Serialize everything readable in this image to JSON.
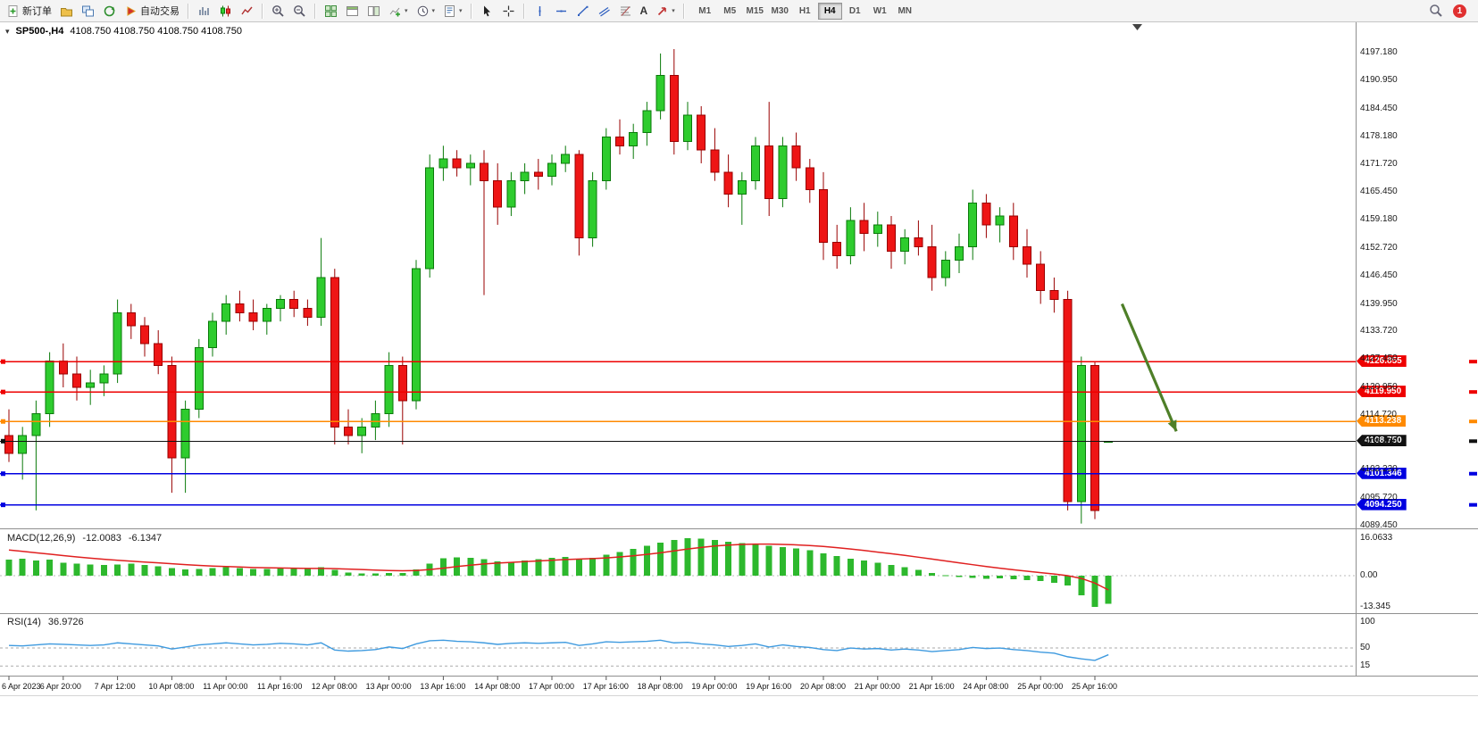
{
  "window": {
    "notification_count": "1"
  },
  "toolbar": {
    "new_order_label": "新订单",
    "auto_trading_label": "自动交易",
    "text_tool_label": "A",
    "timeframes": [
      "M1",
      "M5",
      "M15",
      "M30",
      "H1",
      "H4",
      "D1",
      "W1",
      "MN"
    ],
    "active_timeframe": "H4"
  },
  "chart": {
    "symbol_title": "SP500-,H4",
    "quote_line": "4108.750 4108.750 4108.750 4108.750"
  },
  "chart_data": {
    "type": "candlestick",
    "symbol": "SP500-",
    "timeframe": "H4",
    "price_axis": {
      "min": 4088.9,
      "max": 4204.3,
      "labels": [
        "4197.180",
        "4190.950",
        "4184.450",
        "4178.180",
        "4171.720",
        "4165.450",
        "4159.180",
        "4152.720",
        "4146.450",
        "4139.950",
        "4133.720",
        "4127.450",
        "4120.950",
        "4114.720",
        "4108.450",
        "4102.220",
        "4095.720",
        "4089.450"
      ]
    },
    "time_labels": [
      "6 Apr 2023",
      "6 Apr 20:00",
      "7 Apr 12:00",
      "10 Apr 08:00",
      "11 Apr 00:00",
      "11 Apr 16:00",
      "12 Apr 08:00",
      "13 Apr 00:00",
      "13 Apr 16:00",
      "14 Apr 08:00",
      "17 Apr 00:00",
      "17 Apr 16:00",
      "18 Apr 08:00",
      "19 Apr 00:00",
      "19 Apr 16:00",
      "20 Apr 08:00",
      "21 Apr 00:00",
      "21 Apr 16:00",
      "24 Apr 08:00",
      "25 Apr 00:00",
      "25 Apr 16:00"
    ],
    "time_label_step_bars": 4,
    "candles": [
      [
        4110,
        4116,
        4104,
        4106
      ],
      [
        4106,
        4112,
        4100,
        4110
      ],
      [
        4110,
        4118,
        4093,
        4115
      ],
      [
        4115,
        4129,
        4112,
        4127
      ],
      [
        4127,
        4131,
        4121,
        4124
      ],
      [
        4124,
        4128,
        4118,
        4121
      ],
      [
        4121,
        4125,
        4117,
        4122
      ],
      [
        4122,
        4126,
        4119,
        4124
      ],
      [
        4124,
        4141,
        4122,
        4138
      ],
      [
        4138,
        4140,
        4132,
        4135
      ],
      [
        4135,
        4137,
        4128,
        4131
      ],
      [
        4131,
        4134,
        4124,
        4126
      ],
      [
        4126,
        4128,
        4097,
        4105
      ],
      [
        4105,
        4118,
        4097,
        4116
      ],
      [
        4116,
        4132,
        4114,
        4130
      ],
      [
        4130,
        4138,
        4128,
        4136
      ],
      [
        4136,
        4142,
        4133,
        4140
      ],
      [
        4140,
        4143,
        4136,
        4138
      ],
      [
        4138,
        4141,
        4134,
        4136
      ],
      [
        4136,
        4140,
        4133,
        4139
      ],
      [
        4139,
        4142,
        4136,
        4141
      ],
      [
        4141,
        4143,
        4137,
        4139
      ],
      [
        4139,
        4141,
        4135,
        4137
      ],
      [
        4137,
        4155,
        4135,
        4146
      ],
      [
        4146,
        4148,
        4108,
        4112
      ],
      [
        4112,
        4116,
        4108,
        4110
      ],
      [
        4110,
        4114,
        4106,
        4112
      ],
      [
        4112,
        4118,
        4109,
        4115
      ],
      [
        4115,
        4129,
        4112,
        4126
      ],
      [
        4126,
        4128,
        4108,
        4118
      ],
      [
        4118,
        4150,
        4116,
        4148
      ],
      [
        4148,
        4174,
        4146,
        4171
      ],
      [
        4171,
        4176,
        4168,
        4173
      ],
      [
        4173,
        4175,
        4169,
        4171
      ],
      [
        4171,
        4174,
        4167,
        4172
      ],
      [
        4172,
        4175,
        4142,
        4168
      ],
      [
        4168,
        4172,
        4158,
        4162
      ],
      [
        4162,
        4170,
        4160,
        4168
      ],
      [
        4168,
        4172,
        4165,
        4170
      ],
      [
        4170,
        4173,
        4166,
        4169
      ],
      [
        4169,
        4174,
        4167,
        4172
      ],
      [
        4172,
        4176,
        4170,
        4174
      ],
      [
        4174,
        4175,
        4151,
        4155
      ],
      [
        4155,
        4170,
        4153,
        4168
      ],
      [
        4168,
        4180,
        4166,
        4178
      ],
      [
        4178,
        4182,
        4174,
        4176
      ],
      [
        4176,
        4181,
        4173,
        4179
      ],
      [
        4179,
        4186,
        4176,
        4184
      ],
      [
        4184,
        4197,
        4182,
        4192
      ],
      [
        4192,
        4198,
        4174,
        4177
      ],
      [
        4177,
        4186,
        4175,
        4183
      ],
      [
        4183,
        4185,
        4172,
        4175
      ],
      [
        4175,
        4180,
        4168,
        4170
      ],
      [
        4170,
        4174,
        4162,
        4165
      ],
      [
        4165,
        4170,
        4158,
        4168
      ],
      [
        4168,
        4178,
        4166,
        4176
      ],
      [
        4176,
        4186,
        4160,
        4164
      ],
      [
        4164,
        4178,
        4162,
        4176
      ],
      [
        4176,
        4179,
        4168,
        4171
      ],
      [
        4171,
        4173,
        4163,
        4166
      ],
      [
        4166,
        4170,
        4150,
        4154
      ],
      [
        4154,
        4158,
        4148,
        4151
      ],
      [
        4151,
        4162,
        4149,
        4159
      ],
      [
        4159,
        4163,
        4152,
        4156
      ],
      [
        4156,
        4161,
        4153,
        4158
      ],
      [
        4158,
        4160,
        4148,
        4152
      ],
      [
        4152,
        4157,
        4149,
        4155
      ],
      [
        4155,
        4159,
        4151,
        4153
      ],
      [
        4153,
        4158,
        4143,
        4146
      ],
      [
        4146,
        4152,
        4144,
        4150
      ],
      [
        4150,
        4156,
        4147,
        4153
      ],
      [
        4153,
        4166,
        4150,
        4163
      ],
      [
        4163,
        4165,
        4155,
        4158
      ],
      [
        4158,
        4162,
        4154,
        4160
      ],
      [
        4160,
        4163,
        4150,
        4153
      ],
      [
        4153,
        4157,
        4146,
        4149
      ],
      [
        4149,
        4152,
        4140,
        4143
      ],
      [
        4143,
        4146,
        4138,
        4141
      ],
      [
        4141,
        4143,
        4093,
        4095
      ],
      [
        4095,
        4128,
        4090,
        4126
      ],
      [
        4126,
        4127,
        4091,
        4093
      ],
      [
        4108.75,
        4108.75,
        4108.75,
        4108.75
      ]
    ],
    "hlines": [
      {
        "price": 4126.855,
        "color": "#ee0000",
        "label": "4126.855"
      },
      {
        "price": 4119.95,
        "color": "#ee0000",
        "label": "4119.950"
      },
      {
        "price": 4113.238,
        "color": "#ff8a00",
        "label": "4113.238"
      },
      {
        "price": 4108.75,
        "color": "#111111",
        "label": "4108.750",
        "current": true
      },
      {
        "price": 4101.346,
        "color": "#0000e0",
        "label": "4101.346"
      },
      {
        "price": 4094.25,
        "color": "#0000e0",
        "label": "4094.250"
      }
    ],
    "arrow": {
      "from_bar": 82,
      "from_price": 4140,
      "to_bar": 86,
      "to_price": 4111,
      "color": "#4e7f28"
    },
    "macd": {
      "label": "MACD(12,26,9)",
      "value": "-12.0083",
      "signal_value": "-6.1347",
      "scale_labels": [
        "16.0633",
        "0.00",
        "-13.345"
      ],
      "histogram": [
        6.8,
        7.2,
        6.4,
        6.8,
        5.6,
        5.2,
        4.8,
        4.6,
        4.8,
        5.2,
        4.6,
        4.0,
        3.2,
        2.6,
        2.8,
        3.2,
        3.6,
        3.2,
        2.8,
        2.8,
        3.2,
        3.2,
        2.8,
        3.6,
        2.4,
        1.4,
        1.0,
        0.9,
        1.2,
        1.2,
        2.6,
        5.2,
        7.4,
        7.8,
        7.6,
        7.0,
        6.2,
        6.0,
        6.4,
        7.0,
        7.6,
        8.0,
        7.2,
        7.6,
        9.0,
        10.2,
        11.4,
        12.8,
        14.2,
        15.2,
        16.06,
        15.8,
        15.2,
        14.6,
        14.0,
        13.4,
        12.8,
        12.2,
        11.6,
        10.8,
        9.6,
        8.4,
        7.2,
        6.4,
        5.6,
        4.6,
        3.6,
        2.4,
        1.2,
        0.2,
        -0.6,
        -1.0,
        -1.4,
        -1.2,
        -1.6,
        -2.0,
        -2.4,
        -3.0,
        -4.2,
        -8.5,
        -13.345,
        -12.0083
      ],
      "signal": [
        11.0,
        10.4,
        9.8,
        9.2,
        8.6,
        8.0,
        7.5,
        7.0,
        6.6,
        6.2,
        5.8,
        5.5,
        5.1,
        4.7,
        4.4,
        4.1,
        3.9,
        3.7,
        3.5,
        3.4,
        3.3,
        3.2,
        3.1,
        3.1,
        3.0,
        2.8,
        2.6,
        2.4,
        2.2,
        2.1,
        2.2,
        2.6,
        3.2,
        3.9,
        4.5,
        5.0,
        5.4,
        5.7,
        6.0,
        6.3,
        6.6,
        6.9,
        7.1,
        7.3,
        7.6,
        8.0,
        8.5,
        9.1,
        9.8,
        10.6,
        11.4,
        12.1,
        12.7,
        13.1,
        13.4,
        13.5,
        13.5,
        13.4,
        13.2,
        12.9,
        12.5,
        12.0,
        11.4,
        10.8,
        10.1,
        9.4,
        8.7,
        7.9,
        7.1,
        6.3,
        5.5,
        4.7,
        3.9,
        3.2,
        2.5,
        1.9,
        1.3,
        0.7,
        0.0,
        -1.2,
        -3.2,
        -6.1347
      ]
    },
    "rsi": {
      "label": "RSI(14)",
      "value": "36.9726",
      "scale_labels": [
        "100",
        "50",
        "15"
      ],
      "levels": [
        50,
        15
      ],
      "values": [
        55,
        54,
        56,
        58,
        57,
        56,
        55,
        56,
        60,
        58,
        56,
        54,
        48,
        52,
        56,
        58,
        60,
        58,
        56,
        57,
        59,
        58,
        56,
        60,
        46,
        44,
        45,
        47,
        52,
        49,
        58,
        64,
        65,
        63,
        62,
        60,
        57,
        59,
        60,
        59,
        60,
        61,
        55,
        58,
        62,
        61,
        62,
        63,
        65,
        60,
        61,
        58,
        56,
        53,
        55,
        58,
        52,
        56,
        53,
        51,
        47,
        45,
        50,
        48,
        49,
        46,
        48,
        46,
        43,
        45,
        47,
        51,
        49,
        50,
        47,
        45,
        42,
        40,
        33,
        29,
        26,
        36.97
      ]
    }
  }
}
